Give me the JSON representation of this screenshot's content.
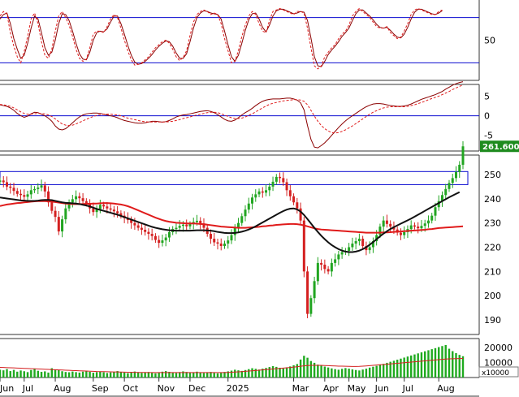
{
  "chart_data": {
    "type": "candlestick",
    "colors": {
      "up": "#21a521",
      "down": "#d42020",
      "ma_short": "#e01b1b",
      "ma_long": "#111111",
      "stoch_k": "#e01b1b",
      "stoch_d": "#8b0000",
      "ref_line": "#0a0ad0",
      "volume": "#1faa1f",
      "volume_ma": "#d42020",
      "panel_border": "#555555",
      "price_badge": "#1e8b1e"
    },
    "x_axis": {
      "months": [
        "Jun",
        "Jul",
        "Aug",
        "Sep",
        "Oct",
        "Nov",
        "Dec",
        "2025",
        "Mar",
        "Apr",
        "May",
        "Jun",
        "Jul",
        "Aug"
      ],
      "month_index": [
        0,
        7,
        16,
        27,
        36,
        46,
        55,
        66,
        85,
        94,
        101,
        109,
        117,
        127
      ],
      "n_bars": 135
    },
    "stochastic": {
      "ticks": [
        "50"
      ],
      "ylim": [
        0,
        100
      ],
      "levels": [
        80,
        20
      ],
      "k": [
        82,
        88,
        85,
        60,
        42,
        28,
        20,
        35,
        55,
        78,
        86,
        72,
        48,
        30,
        26,
        38,
        62,
        82,
        88,
        80,
        70,
        55,
        38,
        26,
        22,
        25,
        40,
        58,
        62,
        62,
        60,
        68,
        78,
        84,
        80,
        66,
        50,
        36,
        24,
        17,
        18,
        20,
        24,
        28,
        34,
        40,
        44,
        48,
        50,
        46,
        38,
        28,
        23,
        27,
        36,
        56,
        74,
        84,
        88,
        90,
        88,
        84,
        86,
        84,
        72,
        52,
        36,
        20,
        22,
        36,
        55,
        70,
        82,
        88,
        84,
        72,
        62,
        60,
        76,
        88,
        90,
        92,
        90,
        88,
        86,
        84,
        88,
        88,
        86,
        66,
        40,
        16,
        12,
        16,
        28,
        34,
        40,
        44,
        52,
        58,
        62,
        70,
        82,
        88,
        92,
        88,
        84,
        80,
        74,
        68,
        66,
        66,
        68,
        60,
        56,
        52,
        54,
        62,
        72,
        84,
        90,
        92,
        90,
        88,
        86,
        84,
        84,
        88,
        90
      ],
      "d": [
        78,
        84,
        86,
        72,
        52,
        38,
        26,
        30,
        46,
        66,
        82,
        78,
        60,
        40,
        30,
        34,
        50,
        72,
        85,
        84,
        76,
        62,
        46,
        32,
        25,
        24,
        34,
        50,
        60,
        62,
        61,
        65,
        74,
        82,
        82,
        72,
        58,
        43,
        30,
        21,
        18,
        19,
        22,
        26,
        31,
        37,
        42,
        46,
        49,
        48,
        42,
        33,
        26,
        26,
        32,
        48,
        66,
        80,
        86,
        89,
        88,
        86,
        85,
        84,
        78,
        62,
        44,
        28,
        22,
        30,
        46,
        63,
        77,
        85,
        86,
        78,
        67,
        61,
        70,
        82,
        89,
        91,
        91,
        89,
        87,
        85,
        86,
        88,
        87,
        76,
        53,
        28,
        16,
        15,
        22,
        31,
        37,
        42,
        48,
        55,
        60,
        66,
        76,
        85,
        90,
        90,
        86,
        82,
        77,
        71,
        67,
        66,
        67,
        63,
        58,
        54,
        53,
        58,
        67,
        78,
        87,
        91,
        91,
        89,
        87,
        85,
        84,
        86,
        89
      ]
    },
    "macd": {
      "ticks": [
        "5",
        "0",
        "-5"
      ],
      "ylim": [
        -9,
        8
      ],
      "zero": 0,
      "macd": [
        2.8,
        2.6,
        2.4,
        2.0,
        1.4,
        0.6,
        0.0,
        -0.4,
        -0.1,
        0.5,
        0.9,
        0.8,
        0.4,
        0.0,
        -0.6,
        -1.4,
        -2.6,
        -3.4,
        -3.6,
        -3.3,
        -2.6,
        -1.8,
        -1.0,
        -0.3,
        0.2,
        0.5,
        0.6,
        0.7,
        0.7,
        0.6,
        0.4,
        0.2,
        0.0,
        -0.2,
        -0.5,
        -0.9,
        -1.2,
        -1.4,
        -1.6,
        -1.8,
        -1.9,
        -1.9,
        -1.8,
        -1.6,
        -1.4,
        -1.4,
        -1.5,
        -1.6,
        -1.5,
        -1.2,
        -0.8,
        -0.3,
        0.0,
        0.2,
        0.3,
        0.5,
        0.7,
        0.9,
        1.1,
        1.2,
        1.3,
        1.1,
        0.8,
        0.3,
        -0.3,
        -0.9,
        -1.3,
        -1.4,
        -1.1,
        -0.5,
        0.2,
        0.8,
        1.3,
        1.9,
        2.6,
        3.2,
        3.7,
        4.0,
        4.2,
        4.3,
        4.3,
        4.3,
        4.4,
        4.5,
        4.5,
        4.3,
        4.0,
        3.3,
        1.5,
        -2.5,
        -6.0,
        -8.0,
        -8.2,
        -7.6,
        -6.9,
        -6.0,
        -5.0,
        -4.0,
        -3.0,
        -2.1,
        -1.3,
        -0.6,
        0.0,
        0.6,
        1.2,
        1.8,
        2.3,
        2.7,
        3.0,
        3.1,
        3.1,
        3.0,
        2.8,
        2.6,
        2.5,
        2.4,
        2.4,
        2.5,
        2.7,
        3.0,
        3.4,
        3.8,
        4.2,
        4.5,
        4.8,
        5.1,
        5.4,
        5.8,
        6.2,
        6.8,
        7.3,
        7.8,
        8.2,
        8.5,
        8.7
      ],
      "signal": [
        2.9,
        2.8,
        2.6,
        2.4,
        2.0,
        1.5,
        1.0,
        0.6,
        0.4,
        0.4,
        0.5,
        0.6,
        0.6,
        0.5,
        0.2,
        -0.2,
        -0.8,
        -1.5,
        -2.1,
        -2.4,
        -2.5,
        -2.4,
        -2.1,
        -1.7,
        -1.3,
        -0.9,
        -0.5,
        -0.2,
        0.1,
        0.3,
        0.4,
        0.4,
        0.4,
        0.3,
        0.2,
        0.0,
        -0.3,
        -0.6,
        -0.8,
        -1.0,
        -1.2,
        -1.4,
        -1.5,
        -1.6,
        -1.6,
        -1.6,
        -1.6,
        -1.6,
        -1.6,
        -1.5,
        -1.4,
        -1.2,
        -1.0,
        -0.7,
        -0.5,
        -0.3,
        0.0,
        0.2,
        0.4,
        0.6,
        0.8,
        0.9,
        0.9,
        0.8,
        0.5,
        0.2,
        -0.2,
        -0.5,
        -0.7,
        -0.7,
        -0.6,
        -0.3,
        0.1,
        0.5,
        1.0,
        1.5,
        2.0,
        2.5,
        2.9,
        3.2,
        3.4,
        3.6,
        3.8,
        3.9,
        4.0,
        4.1,
        4.1,
        4.0,
        3.7,
        2.8,
        1.4,
        -0.1,
        -1.4,
        -2.5,
        -3.3,
        -3.9,
        -4.3,
        -4.4,
        -4.3,
        -4.0,
        -3.6,
        -3.1,
        -2.6,
        -2.0,
        -1.4,
        -0.8,
        -0.2,
        0.4,
        0.9,
        1.3,
        1.7,
        2.0,
        2.2,
        2.3,
        2.3,
        2.3,
        2.3,
        2.3,
        2.4,
        2.6,
        2.8,
        3.1,
        3.4,
        3.7,
        4.1,
        4.4,
        4.7,
        5.0,
        5.4,
        5.8,
        6.2,
        6.7,
        7.1,
        7.5,
        7.9
      ],
      "histogram": []
    },
    "price": {
      "ticks": [
        "250",
        "240",
        "230",
        "220",
        "210",
        "200",
        "190"
      ],
      "ylim": [
        184,
        258
      ],
      "last_price_label": "261.6000",
      "channel": {
        "from_index": 0,
        "to_index": 134,
        "low": 245.8,
        "high": 251.2
      },
      "ohlc_close": [
        247.5,
        246.8,
        245.0,
        244.5,
        243.2,
        242.0,
        241.5,
        240.8,
        241.8,
        243.5,
        244.0,
        244.6,
        245.5,
        243.0,
        238.5,
        235.0,
        232.5,
        226.5,
        231.5,
        236.0,
        238.5,
        239.8,
        241.0,
        240.2,
        239.0,
        238.0,
        236.0,
        234.5,
        235.8,
        237.5,
        236.8,
        236.0,
        235.5,
        234.8,
        234.0,
        233.0,
        232.0,
        231.2,
        230.0,
        229.0,
        228.0,
        227.2,
        226.3,
        225.5,
        224.6,
        223.0,
        221.8,
        222.8,
        224.0,
        226.2,
        227.5,
        228.0,
        228.8,
        229.3,
        228.6,
        229.5,
        230.4,
        230.9,
        229.8,
        228.0,
        225.5,
        223.5,
        222.0,
        221.5,
        220.5,
        221.5,
        222.8,
        225.0,
        228.0,
        230.0,
        232.8,
        235.5,
        238.0,
        240.5,
        241.8,
        243.0,
        242.5,
        243.5,
        245.0,
        247.0,
        249.0,
        248.5,
        246.8,
        243.5,
        241.0,
        238.5,
        236.0,
        231.0,
        210.0,
        192.5,
        199.0,
        206.0,
        213.5,
        212.8,
        211.0,
        210.0,
        213.5,
        215.0,
        217.0,
        218.0,
        218.5,
        220.0,
        221.5,
        222.5,
        223.5,
        220.5,
        218.8,
        220.0,
        222.5,
        225.0,
        228.5,
        231.0,
        229.6,
        228.5,
        227.3,
        226.0,
        225.0,
        226.2,
        227.5,
        229.0,
        228.5,
        227.8,
        228.8,
        229.8,
        231.0,
        233.0,
        236.5,
        239.0,
        241.5,
        244.0,
        246.5,
        248.5,
        251.0,
        254.0,
        261.6
      ],
      "ma_short": [
        237.0,
        237.3,
        237.6,
        237.8,
        238.0,
        238.2,
        238.3,
        238.5,
        238.6,
        238.8,
        238.9,
        239.0,
        239.0,
        239.0,
        238.9,
        238.8,
        238.6,
        238.4,
        238.2,
        238.0,
        237.9,
        237.8,
        237.8,
        237.8,
        237.8,
        237.9,
        237.9,
        238.0,
        238.0,
        238.1,
        238.2,
        238.2,
        238.1,
        238.0,
        237.8,
        237.6,
        237.3,
        236.9,
        236.4,
        235.8,
        235.2,
        234.6,
        234.0,
        233.4,
        232.8,
        232.2,
        231.7,
        231.2,
        230.8,
        230.5,
        230.3,
        230.1,
        230.0,
        229.9,
        229.8,
        229.8,
        229.8,
        229.7,
        229.6,
        229.5,
        229.3,
        229.1,
        228.9,
        228.7,
        228.5,
        228.4,
        228.3,
        228.2,
        228.1,
        228.0,
        228.0,
        228.0,
        228.1,
        228.2,
        228.3,
        228.4,
        228.6,
        228.7,
        228.9,
        229.0,
        229.2,
        229.3,
        229.4,
        229.5,
        229.6,
        229.6,
        229.5,
        229.3,
        229.0,
        228.6,
        228.2,
        227.8,
        227.5,
        227.3,
        227.2,
        227.1,
        227.0,
        226.9,
        226.8,
        226.7,
        226.6,
        226.5,
        226.4,
        226.3,
        226.2,
        226.1,
        226.0,
        226.0,
        226.0,
        226.0,
        226.0,
        226.1,
        226.1,
        226.2,
        226.3,
        226.4,
        226.5,
        226.6,
        226.7,
        226.8,
        226.9,
        227.0,
        227.1,
        227.2,
        227.4,
        227.5,
        227.7,
        227.9,
        228.0,
        228.1,
        228.2,
        228.3,
        228.4,
        228.5,
        228.6
      ],
      "ma_long": [
        240.5,
        240.3,
        240.1,
        239.9,
        239.7,
        239.5,
        239.3,
        239.2,
        239.1,
        239.1,
        239.1,
        239.2,
        239.4,
        239.5,
        239.5,
        239.4,
        239.1,
        238.8,
        238.5,
        238.3,
        238.2,
        238.1,
        238.0,
        237.8,
        237.5,
        237.2,
        236.8,
        236.3,
        235.8,
        235.4,
        235.0,
        234.6,
        234.2,
        233.8,
        233.4,
        232.9,
        232.4,
        231.9,
        231.4,
        230.9,
        230.4,
        229.9,
        229.4,
        228.9,
        228.4,
        228.0,
        227.7,
        227.4,
        227.2,
        227.0,
        226.9,
        226.8,
        226.8,
        226.8,
        226.8,
        226.8,
        226.9,
        227.0,
        227.0,
        227.0,
        226.9,
        226.8,
        226.6,
        226.3,
        226.1,
        225.9,
        225.8,
        225.8,
        225.9,
        226.1,
        226.4,
        226.8,
        227.3,
        227.9,
        228.6,
        229.4,
        230.2,
        231.0,
        231.8,
        232.6,
        233.4,
        234.2,
        234.9,
        235.5,
        235.9,
        236.0,
        235.6,
        234.7,
        233.3,
        231.6,
        229.8,
        228.0,
        226.3,
        224.7,
        223.3,
        222.0,
        220.9,
        220.0,
        219.2,
        218.6,
        218.2,
        218.0,
        218.0,
        218.2,
        218.6,
        219.2,
        220.0,
        221.0,
        222.1,
        223.3,
        224.5,
        225.6,
        226.6,
        227.5,
        228.3,
        229.0,
        229.7,
        230.4,
        231.1,
        231.8,
        232.6,
        233.4,
        234.2,
        235.0,
        235.8,
        236.6,
        237.4,
        238.2,
        239.0,
        239.8,
        240.6,
        241.3,
        242.0,
        242.7
      ],
      "ma_long_note": ""
    },
    "volume": {
      "ticks": [
        "20000",
        "10000"
      ],
      "unit": "x10000",
      "ylim": [
        0,
        26000
      ],
      "values": [
        5200,
        4800,
        5600,
        4300,
        5100,
        3900,
        4700,
        4200,
        3600,
        5000,
        5800,
        4500,
        3800,
        4100,
        3300,
        6200,
        5400,
        4900,
        4200,
        3700,
        3500,
        4000,
        3600,
        3300,
        3900,
        4400,
        3800,
        3200,
        3600,
        4100,
        3500,
        3000,
        3400,
        3800,
        4300,
        3700,
        3300,
        2900,
        3500,
        4000,
        3600,
        3100,
        3400,
        3700,
        3200,
        2800,
        3300,
        3900,
        4300,
        3800,
        3400,
        3000,
        3600,
        4100,
        3700,
        3200,
        3500,
        3900,
        3400,
        3000,
        3300,
        3700,
        3100,
        2800,
        3200,
        3700,
        4100,
        4600,
        5200,
        4800,
        4400,
        5000,
        5600,
        6200,
        5800,
        5300,
        5900,
        6400,
        7000,
        7600,
        7100,
        6500,
        6000,
        6800,
        7400,
        8200,
        9000,
        12000,
        14500,
        13200,
        11000,
        9800,
        8600,
        7900,
        7300,
        6700,
        6100,
        5600,
        5200,
        5800,
        6300,
        5900,
        5400,
        5000,
        4700,
        5300,
        5900,
        6600,
        7200,
        7800,
        8400,
        9100,
        9800,
        10500,
        11200,
        11900,
        12600,
        13300,
        14000,
        14700,
        15400,
        16100,
        16800,
        17500,
        18200,
        18900,
        19600,
        20300,
        21000,
        21700,
        19200,
        17600,
        16300,
        15100,
        14200
      ],
      "ma": [
        6800,
        6700,
        6600,
        6500,
        6400,
        6300,
        6200,
        6100,
        6000,
        5900,
        5800,
        5700,
        5600,
        5500,
        5400,
        5300,
        5200,
        5100,
        5000,
        4900,
        4800,
        4700,
        4600,
        4500,
        4400,
        4300,
        4200,
        4100,
        4000,
        3950,
        3900,
        3850,
        3800,
        3750,
        3700,
        3650,
        3600,
        3550,
        3500,
        3450,
        3400,
        3380,
        3360,
        3340,
        3320,
        3300,
        3300,
        3300,
        3300,
        3300,
        3300,
        3300,
        3300,
        3300,
        3300,
        3300,
        3300,
        3300,
        3300,
        3300,
        3300,
        3300,
        3300,
        3300,
        3300,
        3350,
        3400,
        3500,
        3650,
        3800,
        3950,
        4100,
        4300,
        4500,
        4700,
        4900,
        5100,
        5300,
        5500,
        5700,
        5900,
        6100,
        6300,
        6500,
        6700,
        6950,
        7200,
        7500,
        7800,
        8000,
        8100,
        8150,
        8150,
        8100,
        8000,
        7900,
        7800,
        7700,
        7600,
        7550,
        7500,
        7450,
        7400,
        7400,
        7450,
        7550,
        7700,
        7900,
        8100,
        8300,
        8500,
        8700,
        8900,
        9100,
        9300,
        9500,
        9700,
        9900,
        10100,
        10300,
        10500,
        10700,
        10900,
        11100,
        11300,
        11500,
        11700,
        11900,
        12100,
        12300,
        12450,
        12550,
        12600,
        12650,
        12700
      ]
    }
  }
}
